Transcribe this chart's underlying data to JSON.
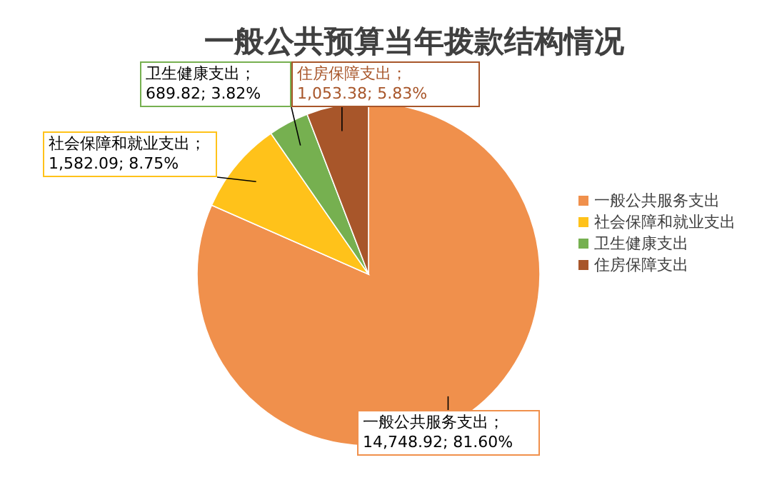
{
  "chart_data": {
    "type": "pie",
    "title": "一般公共预算当年拨款结构情况",
    "categories": [
      "一般公共服务支出",
      "社会保障和就业支出",
      "卫生健康支出",
      "住房保障支出"
    ],
    "values": [
      14748.92,
      1582.09,
      689.82,
      1053.38
    ],
    "colors": [
      "#f0904c",
      "#ffc21a",
      "#76b050",
      "#a8562a"
    ],
    "value_labels": [
      "一般公共服务支出；14,748.92; 81.60%",
      "社会保障和就业支出；1,582.09; 8.75%",
      "卫生健康支出；689.82; 3.82%",
      "住房保障支出；1,053.38; 5.83%"
    ],
    "legend": "right"
  }
}
